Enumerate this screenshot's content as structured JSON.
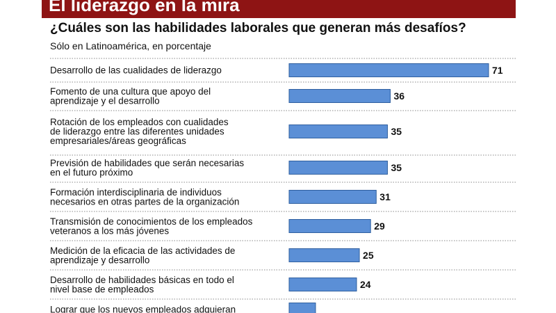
{
  "header": {
    "title": "El liderazgo en la mira",
    "subtitle": "¿Cuáles son las habilidades laborales que generan más desafíos?",
    "note": "Sólo en Latinoamérica, en porcentaje"
  },
  "colors": {
    "banner": "#8e1414",
    "bar_fill": "#5b8fd6",
    "bar_stroke": "#2f5f9f",
    "separator": "#888888"
  },
  "chart_data": {
    "type": "bar",
    "orientation": "horizontal",
    "categories": [
      "Desarrollo de las cualidades de liderazgo",
      "Fomento de una cultura que apoyo del aprendizaje y el desarrollo",
      "Rotación de los empleados con cualidades de liderazgo entre las diferentes unidades empresariales/áreas geográficas",
      "Previsión de habilidades que serán necesarias en el futuro próximo",
      "Formación interdisciplinaria de individuos necesarios en otras partes de la organización",
      "Transmisión de conocimientos de los empleados veteranos a los más jóvenes",
      "Medición de la eficacia de las actividades de aprendizaje y desarrollo",
      "Desarrollo de habilidades básicas en todo el nivel base de empleados",
      "Lograr que los nuevos empleados adquieran"
    ],
    "category_lines": [
      [
        "Desarrollo de las cualidades de liderazgo"
      ],
      [
        "Fomento de una cultura que apoyo del",
        "aprendizaje y el desarrollo"
      ],
      [
        "Rotación de los empleados con cualidades",
        "de liderazgo entre las diferentes unidades",
        "empresariales/áreas geográficas"
      ],
      [
        "Previsión de habilidades que serán necesarias",
        "en el futuro próximo"
      ],
      [
        "Formación interdisciplinaria de individuos",
        "necesarios en otras partes de la organización"
      ],
      [
        "Transmisión de conocimientos de los empleados",
        "veteranos a los más jóvenes"
      ],
      [
        "Medición de la eficacia de las actividades de",
        "aprendizaje y desarrollo"
      ],
      [
        "Desarrollo de habilidades básicas en todo el",
        "nivel base de empleados"
      ],
      [
        "Lograr que los nuevos empleados adquieran"
      ]
    ],
    "values": [
      71,
      36,
      35,
      35,
      31,
      29,
      25,
      24,
      null
    ],
    "value_labels": [
      "71",
      "36",
      "35",
      "35",
      "31",
      "29",
      "25",
      "24",
      ""
    ],
    "xlim": [
      0,
      71
    ],
    "grid": false,
    "legend": "none"
  }
}
